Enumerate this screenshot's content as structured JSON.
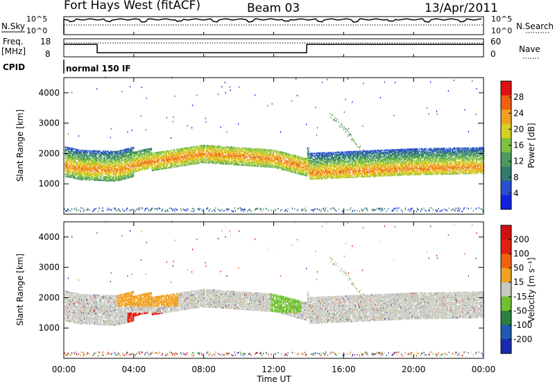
{
  "header": {
    "title": "Fort Hays West (fitACF)",
    "beam": "Beam 03",
    "date": "13/Apr/2011"
  },
  "status_panels": {
    "nsky": {
      "label": "N.Sky",
      "ticks": [
        "10^5",
        "10^0"
      ]
    },
    "nsearch": {
      "label": "N.Search",
      "ticks": [
        "10^5",
        "10^0"
      ]
    },
    "freq": {
      "label_line1": "Freq.",
      "label_line2": "[MHz]",
      "ticks": [
        "18",
        "8"
      ]
    },
    "nave": {
      "label": "Nave",
      "ticks": [
        "60",
        "0"
      ]
    },
    "cpid": {
      "label": "CPID",
      "value": "normal 150 IF"
    }
  },
  "chart_data": [
    {
      "type": "heatmap",
      "name": "power",
      "ylabel": "Slant Range [km]",
      "ylim": [
        0,
        4500
      ],
      "yticks": [
        "4000",
        "3000",
        "2000",
        "1000"
      ],
      "xlim_hours": [
        0,
        24
      ],
      "colorbar": {
        "label": "Power [dB]",
        "ticks": [
          "28",
          "24",
          "20",
          "16",
          "12",
          "8",
          "4"
        ],
        "colors": [
          "#1020e0",
          "#2850d0",
          "#2f7c6e",
          "#4a9a60",
          "#7cc040",
          "#d8d020",
          "#f0a020",
          "#f06010",
          "#e01010"
        ]
      },
      "features": [
        {
          "t_start": 0.0,
          "t_end": 4.0,
          "range_km": [
            1100,
            2100
          ],
          "peak_db": 28
        },
        {
          "t_start": 3.8,
          "t_end": 5.5,
          "range_km": [
            600,
            1600
          ],
          "peak_db": 12
        },
        {
          "t_start": 5.0,
          "t_end": 13.0,
          "range_km": [
            1600,
            2500
          ],
          "peak_db": 12
        },
        {
          "t_start": 14.0,
          "t_end": 24.0,
          "range_km": [
            1200,
            2300
          ],
          "peak_db": 24
        }
      ]
    },
    {
      "type": "heatmap",
      "name": "velocity",
      "ylabel": "Slant Range [km]",
      "ylim": [
        0,
        4500
      ],
      "yticks": [
        "4000",
        "3000",
        "2000",
        "1000"
      ],
      "xlim_hours": [
        0,
        24
      ],
      "colorbar": {
        "label": "Velocity [m s⁻¹]",
        "ticks": [
          "200",
          "100",
          "50",
          "15",
          "-15",
          "-50",
          "-100",
          "-200"
        ],
        "colors": [
          "#1a2ab0",
          "#1f5ab0",
          "#2a8040",
          "#70c030",
          "#c8c8c0",
          "#f0a020",
          "#f06010",
          "#e02010",
          "#d01010"
        ]
      },
      "features": [
        {
          "t_start": 0.0,
          "t_end": 14.0,
          "range_km": [
            1200,
            2500
          ],
          "velocity": 0
        },
        {
          "t_start": 3.5,
          "t_end": 5.5,
          "range_km": [
            600,
            1600
          ],
          "velocity": -80
        },
        {
          "t_start": 12.0,
          "t_end": 13.5,
          "range_km": [
            1500,
            2800
          ],
          "velocity": 40
        },
        {
          "t_start": 14.0,
          "t_end": 24.0,
          "range_km": [
            1300,
            2300
          ],
          "velocity": 0
        }
      ]
    }
  ],
  "x_axis": {
    "label": "Time UT",
    "ticks": [
      "00:00",
      "04:00",
      "08:00",
      "12:00",
      "16:00",
      "20:00",
      "00:00"
    ]
  }
}
